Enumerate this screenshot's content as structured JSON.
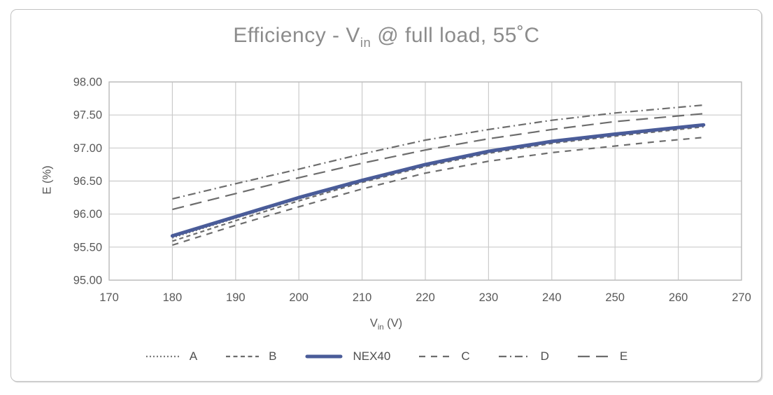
{
  "header": {
    "title_prefix": "Efficiency - V",
    "title_sub": "in",
    "title_suffix": " @ full load, 55˚C"
  },
  "axes": {
    "y_title": "E (%)",
    "x_title_prefix": "V",
    "x_title_sub": "in",
    "x_title_suffix": " (V)"
  },
  "legend": {
    "position": "bottom",
    "items": [
      {
        "label": "A",
        "line_style": "dotted",
        "color": "gray"
      },
      {
        "label": "B",
        "line_style": "short-dash",
        "color": "gray"
      },
      {
        "label": "NEX40",
        "line_style": "solid",
        "color": "blue"
      },
      {
        "label": "C",
        "line_style": "medium-dash",
        "color": "gray"
      },
      {
        "label": "D",
        "line_style": "dash-dot",
        "color": "gray"
      },
      {
        "label": "E",
        "line_style": "long-dash",
        "color": "gray"
      }
    ]
  },
  "colors": {
    "nex40_blue": "#4a5c99",
    "competitor_gray": "#6d6d6d",
    "grid_gray": "#cbcbcb",
    "plot_border_gray": "#bdbdbd",
    "title_gray": "#8c8c8c",
    "axis_label_gray": "#595959"
  },
  "chart_data": {
    "type": "line",
    "title": "Efficiency - Vin @ full load, 55˚C",
    "xlabel": "Vin (V)",
    "ylabel": "E (%)",
    "xlim": [
      170,
      270
    ],
    "ylim": [
      95.0,
      98.0
    ],
    "grid": true,
    "legend_position": "bottom",
    "x_ticks": [
      {
        "v": 170,
        "label": "170"
      },
      {
        "v": 180,
        "label": "180"
      },
      {
        "v": 190,
        "label": "190"
      },
      {
        "v": 200,
        "label": "200"
      },
      {
        "v": 210,
        "label": "210"
      },
      {
        "v": 220,
        "label": "220"
      },
      {
        "v": 230,
        "label": "230"
      },
      {
        "v": 240,
        "label": "240"
      },
      {
        "v": 250,
        "label": "250"
      },
      {
        "v": 260,
        "label": "260"
      },
      {
        "v": 270,
        "label": "270"
      }
    ],
    "y_ticks": [
      {
        "v": 95.0,
        "label": "95.00"
      },
      {
        "v": 95.5,
        "label": "95.50"
      },
      {
        "v": 96.0,
        "label": "96.00"
      },
      {
        "v": 96.5,
        "label": "96.50"
      },
      {
        "v": 97.0,
        "label": "97.00"
      },
      {
        "v": 97.5,
        "label": "97.50"
      },
      {
        "v": 98.0,
        "label": "98.00"
      }
    ],
    "x": [
      180,
      190,
      200,
      210,
      220,
      230,
      240,
      250,
      257,
      264
    ],
    "series": [
      {
        "name": "A",
        "color": "gray",
        "line_style": "dotted",
        "values": [
          95.64,
          95.94,
          96.23,
          96.5,
          96.74,
          96.94,
          97.09,
          97.2,
          97.27,
          97.34
        ]
      },
      {
        "name": "B",
        "color": "gray",
        "line_style": "short-dash",
        "values": [
          95.59,
          95.9,
          96.2,
          96.48,
          96.72,
          96.92,
          97.07,
          97.18,
          97.25,
          97.32
        ]
      },
      {
        "name": "NEX40",
        "color": "blue",
        "line_style": "solid",
        "values": [
          95.67,
          95.96,
          96.25,
          96.51,
          96.75,
          96.95,
          97.1,
          97.21,
          97.28,
          97.35
        ]
      },
      {
        "name": "C",
        "color": "gray",
        "line_style": "medium-dash",
        "values": [
          95.53,
          95.83,
          96.11,
          96.38,
          96.62,
          96.8,
          96.93,
          97.03,
          97.1,
          97.16
        ]
      },
      {
        "name": "D",
        "color": "gray",
        "line_style": "dash-dot",
        "values": [
          96.23,
          96.46,
          96.68,
          96.91,
          97.12,
          97.28,
          97.42,
          97.53,
          97.59,
          97.65
        ]
      },
      {
        "name": "E",
        "color": "gray",
        "line_style": "long-dash",
        "values": [
          96.07,
          96.31,
          96.55,
          96.77,
          96.97,
          97.14,
          97.28,
          97.4,
          97.46,
          97.52
        ]
      }
    ]
  }
}
